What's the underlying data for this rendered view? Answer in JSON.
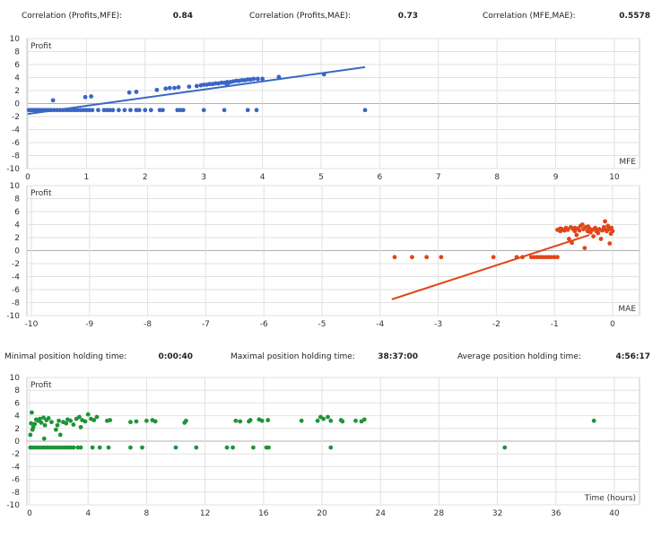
{
  "correlation": {
    "profits_mfe_label": "Correlation (Profits,MFE):",
    "profits_mfe": "0.84",
    "profits_mae_label": "Correlation (Profits,MAE):",
    "profits_mae": "0.73",
    "mfe_mae_label": "Correlation (MFE,MAE):",
    "mfe_mae": "0.5578"
  },
  "holding": {
    "min_label": "Minimal position holding time:",
    "min": "0:00:40",
    "max_label": "Maximal position holding time:",
    "max": "38:37:00",
    "avg_label": "Average position holding time:",
    "avg": "4:56:17"
  },
  "chart_data": [
    {
      "type": "scatter",
      "ylabel": "Profit",
      "xlabel": "MFE",
      "color": "#3a66c4",
      "xlim": [
        0,
        10
      ],
      "ylim": [
        -10,
        10
      ],
      "xticks": [
        0,
        1,
        2,
        3,
        4,
        5,
        6,
        7,
        8,
        9,
        10
      ],
      "yticks": [
        10,
        8,
        6,
        4,
        2,
        0,
        -2,
        -4,
        -6,
        -8,
        -10
      ],
      "grid": true,
      "points": [
        [
          0.02,
          -1
        ],
        [
          0.05,
          -1
        ],
        [
          0.08,
          -1
        ],
        [
          0.1,
          -1
        ],
        [
          0.13,
          -1
        ],
        [
          0.16,
          -1
        ],
        [
          0.2,
          -1
        ],
        [
          0.24,
          -1
        ],
        [
          0.28,
          -1
        ],
        [
          0.32,
          -1
        ],
        [
          0.36,
          -1
        ],
        [
          0.4,
          -1
        ],
        [
          0.45,
          -1
        ],
        [
          0.5,
          -1
        ],
        [
          0.55,
          -1
        ],
        [
          0.6,
          -1
        ],
        [
          0.65,
          -1
        ],
        [
          0.7,
          -1
        ],
        [
          0.75,
          -1
        ],
        [
          0.8,
          -1
        ],
        [
          0.85,
          -1
        ],
        [
          0.9,
          -1
        ],
        [
          0.95,
          -1
        ],
        [
          1.0,
          -1
        ],
        [
          1.05,
          -1
        ],
        [
          1.1,
          -1
        ],
        [
          1.2,
          -1
        ],
        [
          1.3,
          -1
        ],
        [
          1.35,
          -1
        ],
        [
          1.4,
          -1
        ],
        [
          1.45,
          -1
        ],
        [
          1.55,
          -1
        ],
        [
          1.65,
          -1
        ],
        [
          1.75,
          -1
        ],
        [
          1.85,
          -1
        ],
        [
          1.9,
          -1
        ],
        [
          2.0,
          -1
        ],
        [
          2.1,
          -1
        ],
        [
          2.25,
          -1
        ],
        [
          2.3,
          -1
        ],
        [
          2.55,
          -1
        ],
        [
          2.6,
          -1
        ],
        [
          2.65,
          -1
        ],
        [
          3.0,
          -1
        ],
        [
          3.35,
          -1
        ],
        [
          3.75,
          -1
        ],
        [
          3.9,
          -1
        ],
        [
          5.75,
          -1
        ],
        [
          0.43,
          0.5
        ],
        [
          0.98,
          1.0
        ],
        [
          1.08,
          1.1
        ],
        [
          1.73,
          1.7
        ],
        [
          1.85,
          1.8
        ],
        [
          2.2,
          2.1
        ],
        [
          2.35,
          2.3
        ],
        [
          2.42,
          2.4
        ],
        [
          2.5,
          2.4
        ],
        [
          2.57,
          2.5
        ],
        [
          2.75,
          2.6
        ],
        [
          2.88,
          2.7
        ],
        [
          2.95,
          2.8
        ],
        [
          3.0,
          2.9
        ],
        [
          3.05,
          2.9
        ],
        [
          3.1,
          3.0
        ],
        [
          3.15,
          3.0
        ],
        [
          3.2,
          3.1
        ],
        [
          3.25,
          3.1
        ],
        [
          3.3,
          3.2
        ],
        [
          3.35,
          3.2
        ],
        [
          3.4,
          3.3
        ],
        [
          3.45,
          3.3
        ],
        [
          3.5,
          3.4
        ],
        [
          3.55,
          3.5
        ],
        [
          3.6,
          3.5
        ],
        [
          3.65,
          3.6
        ],
        [
          3.7,
          3.6
        ],
        [
          3.75,
          3.7
        ],
        [
          3.8,
          3.7
        ],
        [
          3.85,
          3.8
        ],
        [
          3.92,
          3.8
        ],
        [
          4.0,
          3.8
        ],
        [
          4.28,
          4.1
        ],
        [
          5.05,
          4.5
        ],
        [
          3.4,
          2.9
        ]
      ],
      "trend": [
        [
          0,
          -1.6
        ],
        [
          5.75,
          5.6
        ]
      ]
    },
    {
      "type": "scatter",
      "ylabel": "Profit",
      "xlabel": "MAE",
      "color": "#e0461b",
      "xlim": [
        -10,
        0
      ],
      "ylim": [
        -10,
        10
      ],
      "xticks": [
        -10,
        -9,
        -8,
        -7,
        -6,
        -5,
        -4,
        -3,
        -2,
        -1,
        0
      ],
      "yticks": [
        10,
        8,
        6,
        4,
        2,
        0,
        -2,
        -4,
        -6,
        -8,
        -10
      ],
      "grid": true,
      "points": [
        [
          -3.75,
          -1
        ],
        [
          -3.45,
          -1
        ],
        [
          -3.2,
          -1
        ],
        [
          -2.95,
          -1
        ],
        [
          -2.05,
          -1
        ],
        [
          -1.65,
          -1
        ],
        [
          -1.55,
          -1
        ],
        [
          -1.4,
          -1
        ],
        [
          -1.35,
          -1
        ],
        [
          -1.3,
          -1
        ],
        [
          -1.25,
          -1
        ],
        [
          -1.2,
          -1
        ],
        [
          -1.15,
          -1
        ],
        [
          -1.1,
          -1
        ],
        [
          -1.05,
          -1
        ],
        [
          -1.0,
          -1
        ],
        [
          -0.95,
          -1
        ],
        [
          -0.95,
          3.2
        ],
        [
          -0.9,
          3.0
        ],
        [
          -0.87,
          3.3
        ],
        [
          -0.83,
          3.1
        ],
        [
          -0.8,
          3.5
        ],
        [
          -0.77,
          3.2
        ],
        [
          -0.75,
          1.8
        ],
        [
          -0.72,
          3.6
        ],
        [
          -0.7,
          1.2
        ],
        [
          -0.68,
          3.3
        ],
        [
          -0.65,
          3.0
        ],
        [
          -0.62,
          2.4
        ],
        [
          -0.6,
          3.4
        ],
        [
          -0.57,
          3.1
        ],
        [
          -0.55,
          3.8
        ],
        [
          -0.52,
          4.0
        ],
        [
          -0.5,
          3.3
        ],
        [
          -0.48,
          0.4
        ],
        [
          -0.46,
          3.6
        ],
        [
          -0.43,
          3.0
        ],
        [
          -0.4,
          3.4
        ],
        [
          -0.38,
          2.8
        ],
        [
          -0.35,
          3.2
        ],
        [
          -0.33,
          2.2
        ],
        [
          -0.3,
          3.5
        ],
        [
          -0.28,
          3.0
        ],
        [
          -0.25,
          2.7
        ],
        [
          -0.23,
          3.3
        ],
        [
          -0.2,
          1.8
        ],
        [
          -0.18,
          3.1
        ],
        [
          -0.15,
          3.6
        ],
        [
          -0.13,
          4.5
        ],
        [
          -0.1,
          3.0
        ],
        [
          -0.08,
          3.8
        ],
        [
          -0.06,
          3.3
        ],
        [
          -0.05,
          1.1
        ],
        [
          -0.03,
          2.6
        ],
        [
          -0.02,
          3.5
        ],
        [
          0,
          3.0
        ],
        [
          -0.9,
          3.4
        ],
        [
          -0.65,
          3.5
        ],
        [
          -0.42,
          3.7
        ],
        [
          -0.12,
          3.2
        ]
      ],
      "trend": [
        [
          -3.8,
          -7.5
        ],
        [
          -0.4,
          2.4
        ]
      ]
    },
    {
      "type": "scatter",
      "ylabel": "Profit",
      "xlabel": "Time (hours)",
      "color": "#1e9438",
      "xlim": [
        0,
        40
      ],
      "ylim": [
        -10,
        10
      ],
      "xticks": [
        0,
        4,
        8,
        12,
        16,
        20,
        24,
        28,
        32,
        36,
        40
      ],
      "yticks": [
        10,
        8,
        6,
        4,
        2,
        0,
        -2,
        -4,
        -6,
        -8,
        -10
      ],
      "grid": true,
      "points": [
        [
          0.05,
          -1
        ],
        [
          0.2,
          -1
        ],
        [
          0.4,
          -1
        ],
        [
          0.6,
          -1
        ],
        [
          0.8,
          -1
        ],
        [
          1.0,
          -1
        ],
        [
          1.2,
          -1
        ],
        [
          1.4,
          -1
        ],
        [
          1.6,
          -1
        ],
        [
          1.8,
          -1
        ],
        [
          2.0,
          -1
        ],
        [
          2.2,
          -1
        ],
        [
          2.4,
          -1
        ],
        [
          2.6,
          -1
        ],
        [
          2.8,
          -1
        ],
        [
          3.0,
          -1
        ],
        [
          3.3,
          -1
        ],
        [
          3.5,
          -1
        ],
        [
          4.3,
          -1
        ],
        [
          4.8,
          -1
        ],
        [
          5.4,
          -1
        ],
        [
          6.9,
          -1
        ],
        [
          7.7,
          -1
        ],
        [
          10.0,
          -1
        ],
        [
          11.4,
          -1
        ],
        [
          13.5,
          -1
        ],
        [
          13.9,
          -1
        ],
        [
          15.3,
          -1
        ],
        [
          16.2,
          -1
        ],
        [
          16.35,
          -1
        ],
        [
          20.6,
          -1
        ],
        [
          32.5,
          -1
        ],
        [
          0.05,
          1.0
        ],
        [
          0.1,
          2.8
        ],
        [
          0.15,
          4.5
        ],
        [
          0.2,
          1.8
        ],
        [
          0.25,
          2.2
        ],
        [
          0.35,
          2.7
        ],
        [
          0.45,
          3.4
        ],
        [
          0.6,
          3.2
        ],
        [
          0.7,
          3.5
        ],
        [
          0.8,
          2.9
        ],
        [
          0.95,
          3.7
        ],
        [
          1.0,
          0.4
        ],
        [
          1.05,
          2.5
        ],
        [
          1.15,
          3.3
        ],
        [
          1.3,
          3.6
        ],
        [
          1.5,
          3.0
        ],
        [
          1.8,
          1.8
        ],
        [
          1.9,
          2.5
        ],
        [
          2.0,
          3.2
        ],
        [
          2.1,
          1.0
        ],
        [
          2.3,
          3.0
        ],
        [
          2.5,
          2.8
        ],
        [
          2.6,
          3.4
        ],
        [
          2.8,
          3.2
        ],
        [
          3.0,
          2.6
        ],
        [
          3.2,
          3.5
        ],
        [
          3.4,
          3.8
        ],
        [
          3.5,
          2.2
        ],
        [
          3.6,
          3.3
        ],
        [
          3.8,
          3.1
        ],
        [
          4.0,
          4.2
        ],
        [
          4.2,
          3.5
        ],
        [
          4.4,
          3.3
        ],
        [
          4.6,
          3.8
        ],
        [
          5.3,
          3.2
        ],
        [
          5.5,
          3.3
        ],
        [
          6.9,
          3.0
        ],
        [
          7.3,
          3.1
        ],
        [
          8.0,
          3.2
        ],
        [
          8.4,
          3.3
        ],
        [
          8.6,
          3.1
        ],
        [
          10.6,
          2.9
        ],
        [
          10.7,
          3.2
        ],
        [
          14.1,
          3.2
        ],
        [
          14.4,
          3.1
        ],
        [
          15.0,
          3.1
        ],
        [
          15.1,
          3.3
        ],
        [
          15.7,
          3.4
        ],
        [
          15.9,
          3.2
        ],
        [
          16.3,
          3.3
        ],
        [
          18.6,
          3.2
        ],
        [
          19.7,
          3.2
        ],
        [
          19.9,
          3.8
        ],
        [
          20.1,
          3.5
        ],
        [
          20.4,
          3.8
        ],
        [
          20.6,
          3.2
        ],
        [
          21.3,
          3.3
        ],
        [
          21.4,
          3.1
        ],
        [
          22.3,
          3.2
        ],
        [
          22.7,
          3.1
        ],
        [
          22.9,
          3.4
        ],
        [
          38.6,
          3.2
        ]
      ],
      "trend": null
    }
  ]
}
